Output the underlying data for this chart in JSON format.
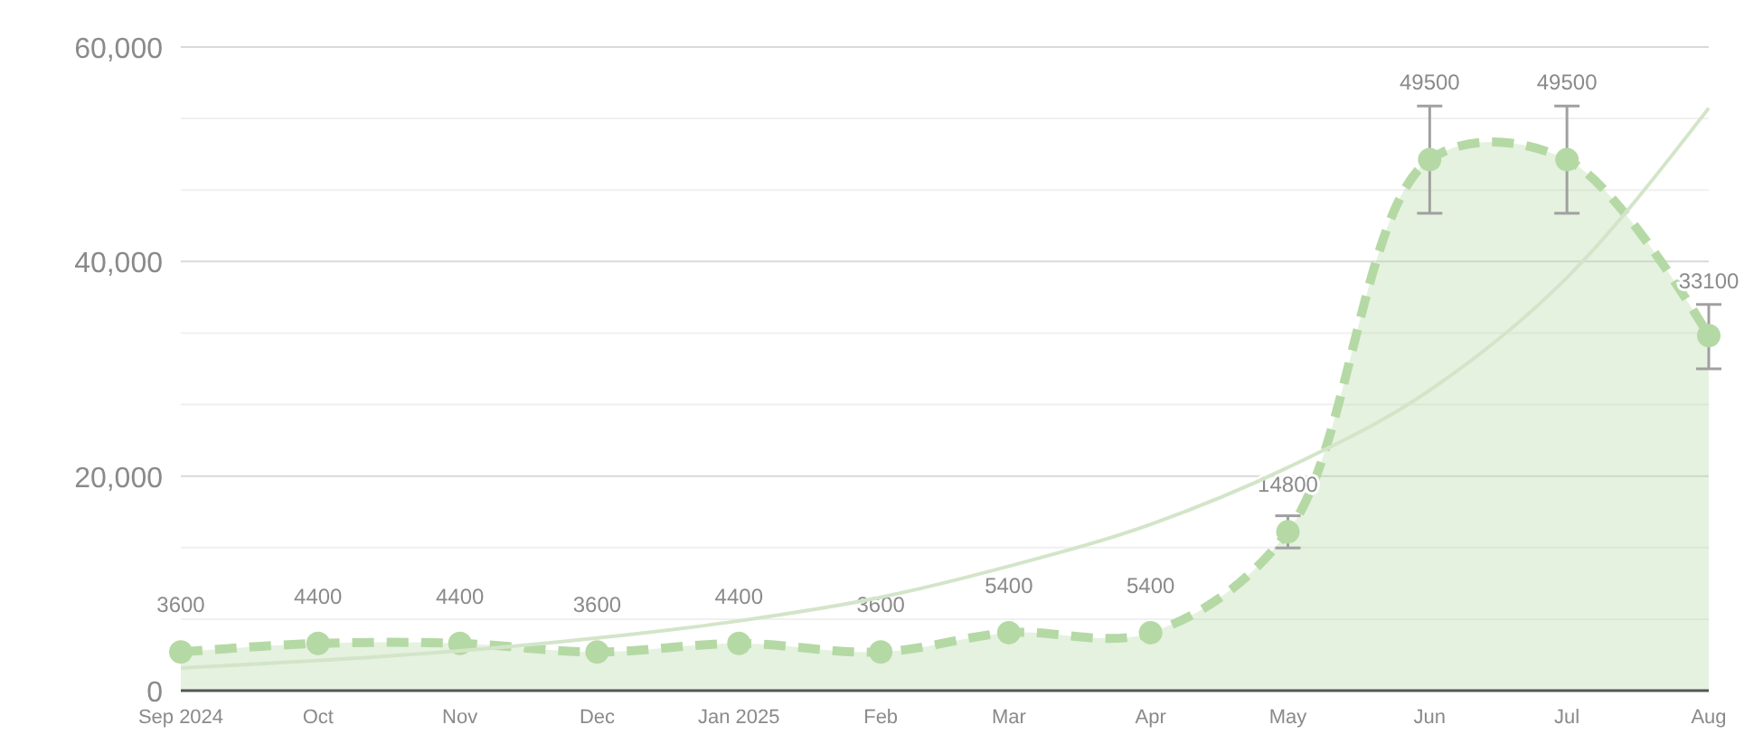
{
  "chart_data": {
    "type": "area",
    "x": [
      "2024-09",
      "2024-10",
      "2024-11",
      "2024-12",
      "2025-01",
      "2025-02",
      "2025-03",
      "2025-04",
      "2025-05",
      "2025-06",
      "2025-07",
      "2025-08"
    ],
    "series": [
      {
        "color": "#b5d9a5",
        "values": [
          3600,
          4400,
          4400,
          3600,
          4400,
          3600,
          5400,
          5400,
          14800,
          49500,
          49500,
          33100
        ],
        "errors": [
          null,
          null,
          null,
          null,
          null,
          null,
          null,
          null,
          [
            13300,
            16300
          ],
          [
            44500,
            54500
          ],
          [
            44500,
            54500
          ],
          [
            30000,
            36000
          ]
        ],
        "marker": "circle",
        "line_style": "dashed",
        "value_labels": [
          "3600",
          "4400",
          "4400",
          "3600",
          "4400",
          "3600",
          "5400",
          "5400",
          "14800",
          "49500",
          "49500",
          "33100"
        ]
      },
      {
        "type": "line",
        "color": "#d3e5c9",
        "values": [
          2100,
          2800,
          3700,
          4900,
          6500,
          8700,
          11600,
          15500,
          20800,
          28000,
          38500,
          54300
        ],
        "marker": "none",
        "line_style": "solid"
      }
    ],
    "grid": "y",
    "xlim": [
      "2024-09",
      "2025-08"
    ],
    "xticks": [
      {
        "value": "2024-09",
        "label": "Sep 2024"
      },
      {
        "value": "2024-10",
        "label": "Oct"
      },
      {
        "value": "2024-11",
        "label": "Nov"
      },
      {
        "value": "2024-12",
        "label": "Dec"
      },
      {
        "value": "2025-01",
        "label": "Jan 2025"
      },
      {
        "value": "2025-02",
        "label": "Feb"
      },
      {
        "value": "2025-03",
        "label": "Mar"
      },
      {
        "value": "2025-04",
        "label": "Apr"
      },
      {
        "value": "2025-05",
        "label": "May"
      },
      {
        "value": "2025-06",
        "label": "Jun"
      },
      {
        "value": "2025-07",
        "label": "Jul"
      },
      {
        "value": "2025-08",
        "label": "Aug"
      }
    ],
    "ylim": [
      0,
      60000
    ],
    "yticks": [
      0,
      {
        "value": 6667,
        "label": null
      },
      {
        "value": 13333,
        "label": null
      },
      {
        "value": 20000,
        "label": "20,000"
      },
      {
        "value": 26667,
        "label": null
      },
      {
        "value": 33333,
        "label": null
      },
      {
        "value": 40000,
        "label": "40,000"
      },
      {
        "value": 46667,
        "label": null
      },
      {
        "value": 53333,
        "label": null
      },
      {
        "value": 60000,
        "label": "60,000"
      }
    ]
  }
}
